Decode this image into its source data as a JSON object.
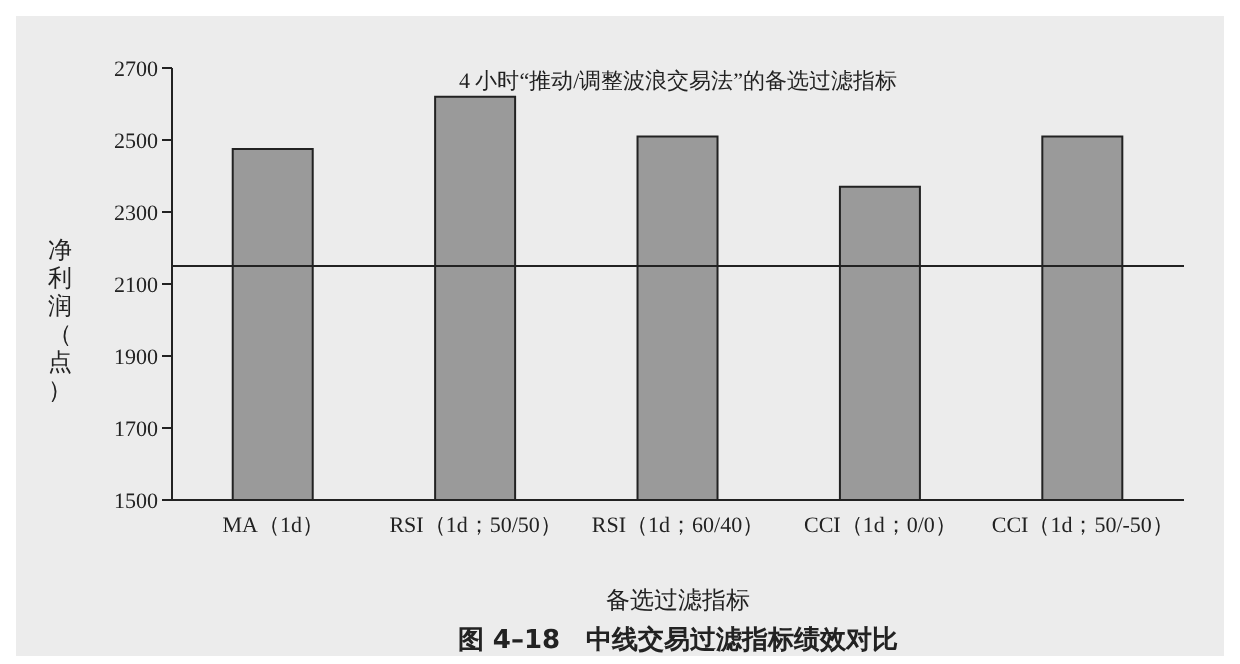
{
  "chart_data": {
    "type": "bar",
    "title": "4 小时“推动/调整波浪交易法”的备选过滤指标",
    "xlabel": "备选过滤指标",
    "ylabel": "净利润（点）",
    "categories": [
      "MA（1d）",
      "RSI（1d；50/50）",
      "RSI（1d；60/40）",
      "CCI（1d；0/0）",
      "CCI（1d；50/-50）"
    ],
    "values": [
      2475,
      2620,
      2510,
      2370,
      2510
    ],
    "color": "#9a9a9a",
    "ylim": [
      1500,
      2700
    ],
    "yticks": [
      1500,
      1700,
      1900,
      2100,
      2300,
      2500,
      2700
    ],
    "ref_lines": [
      {
        "axis": "y",
        "value": 2150,
        "color": "#222222"
      }
    ],
    "annotations": [
      "图 4–18　中线交易过滤指标绩效对比"
    ],
    "legend": false,
    "grid": false
  }
}
